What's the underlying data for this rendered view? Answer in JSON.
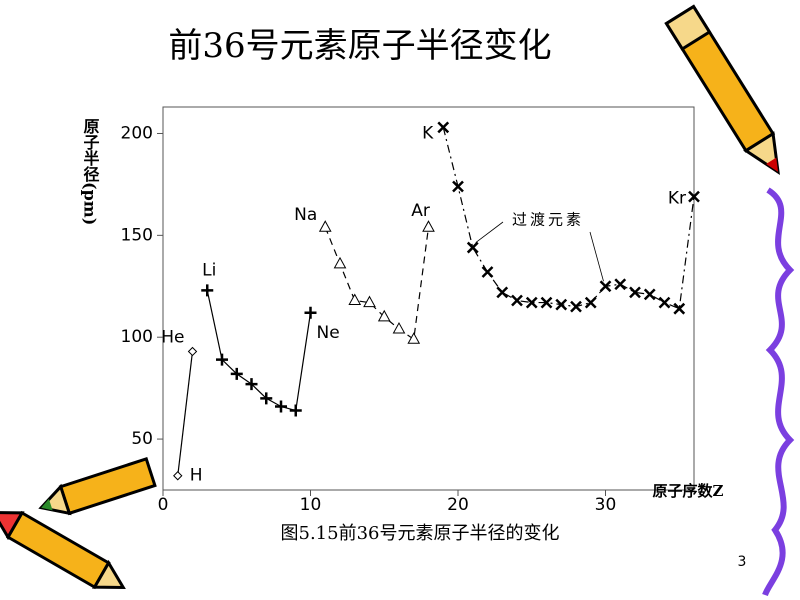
{
  "chart_data": {
    "type": "line",
    "title": "前36号元素原子半径变化",
    "y_label": "原子半径(pm)",
    "x_label": "原子序数Z",
    "caption": "图5.15前36号元素原子半径的变化",
    "annotation": "过渡元素",
    "page_number": "3",
    "xlim": [
      0,
      36
    ],
    "xticks": [
      0,
      10,
      20,
      30
    ],
    "ylim": [
      25,
      213
    ],
    "yticks": [
      50,
      100,
      150,
      200
    ],
    "series": [
      {
        "x": [
          1,
          2
        ],
        "values": [
          32,
          93
        ],
        "labels": [
          "H",
          "He"
        ],
        "marker": "diamond",
        "line_style": "solid",
        "color": "#000000"
      },
      {
        "x": [
          3,
          4,
          5,
          6,
          7,
          8,
          9,
          10
        ],
        "values": [
          123,
          89,
          82,
          77,
          70,
          66,
          64,
          112
        ],
        "labels": [
          "Li",
          null,
          null,
          null,
          null,
          null,
          null,
          "Ne"
        ],
        "marker": "plus",
        "line_style": "solid",
        "color": "#000000"
      },
      {
        "x": [
          11,
          12,
          13,
          14,
          15,
          16,
          17,
          18
        ],
        "values": [
          154,
          136,
          118,
          117,
          110,
          104,
          99,
          154
        ],
        "labels": [
          "Na",
          null,
          null,
          null,
          null,
          null,
          null,
          "Ar"
        ],
        "marker": "triangle",
        "line_style": "dashed",
        "color": "#000000"
      },
      {
        "x": [
          19,
          20,
          21,
          22,
          23,
          24,
          25,
          26,
          27,
          28,
          29,
          30,
          31,
          32,
          33,
          34,
          35,
          36
        ],
        "values": [
          203,
          174,
          144,
          132,
          122,
          118,
          117,
          117,
          116,
          115,
          117,
          125,
          126,
          122,
          121,
          117,
          114,
          169
        ],
        "labels": [
          "K",
          null,
          null,
          null,
          null,
          null,
          null,
          null,
          null,
          null,
          null,
          null,
          null,
          null,
          null,
          null,
          null,
          "Kr"
        ],
        "marker": "x",
        "line_style": "dashdot",
        "color": "#000000"
      }
    ]
  }
}
